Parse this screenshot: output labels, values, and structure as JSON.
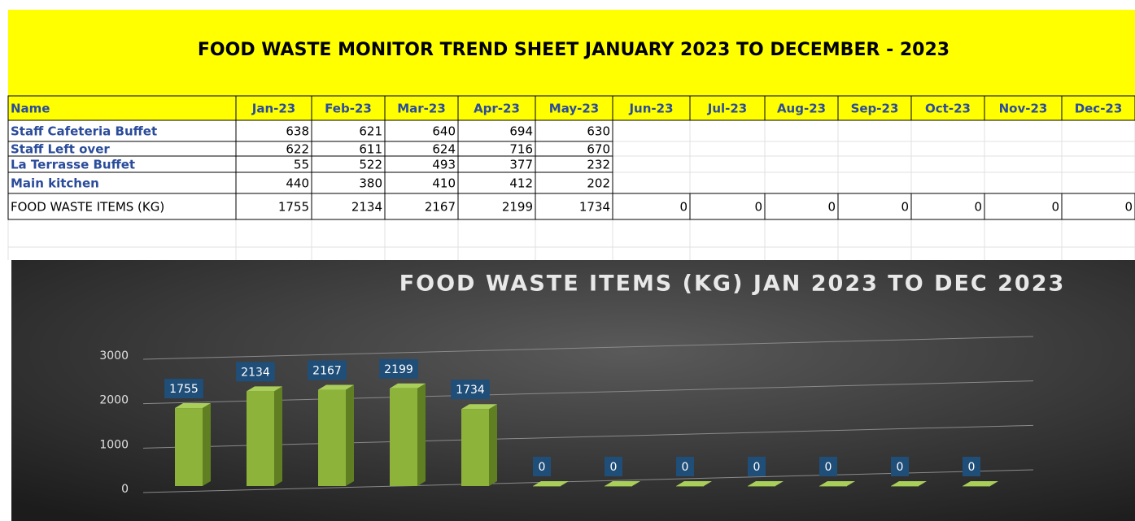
{
  "header": {
    "title": "FOOD WASTE MONITOR TREND SHEET JANUARY 2023 TO DECEMBER - 2023"
  },
  "table": {
    "columns": [
      "Name",
      "Jan-23",
      "Feb-23",
      "Mar-23",
      "Apr-23",
      "May-23",
      "Jun-23",
      "Jul-23",
      "Aug-23",
      "Sep-23",
      "Oct-23",
      "Nov-23",
      "Dec-23"
    ],
    "rows": [
      [
        "Staff Cafeteria Buffet",
        638,
        621,
        640,
        694,
        630,
        null,
        null,
        null,
        null,
        null,
        null,
        null
      ],
      [
        "Staff Left over",
        622,
        611,
        624,
        716,
        670,
        null,
        null,
        null,
        null,
        null,
        null,
        null
      ],
      [
        "La Terrasse Buffet",
        55,
        522,
        493,
        377,
        232,
        null,
        null,
        null,
        null,
        null,
        null,
        null
      ],
      [
        "Main kitchen",
        440,
        380,
        410,
        412,
        202,
        null,
        null,
        null,
        null,
        null,
        null,
        null
      ],
      [
        "FOOD WASTE ITEMS (KG)",
        1755,
        2134,
        2167,
        2199,
        1734,
        0,
        0,
        0,
        0,
        0,
        0,
        0
      ]
    ]
  },
  "chart_data": {
    "type": "bar",
    "title": "FOOD WASTE ITEMS (KG) JAN 2023 TO DEC 2023",
    "values": [
      1755,
      2134,
      2167,
      2199,
      1734,
      0,
      0,
      0,
      0,
      0,
      0,
      0
    ],
    "color": "#8db33a",
    "label_color": "#1f4e79",
    "ylim": [
      0,
      3000
    ],
    "yticks": [
      0,
      1000,
      2000,
      3000
    ],
    "grid": true
  }
}
